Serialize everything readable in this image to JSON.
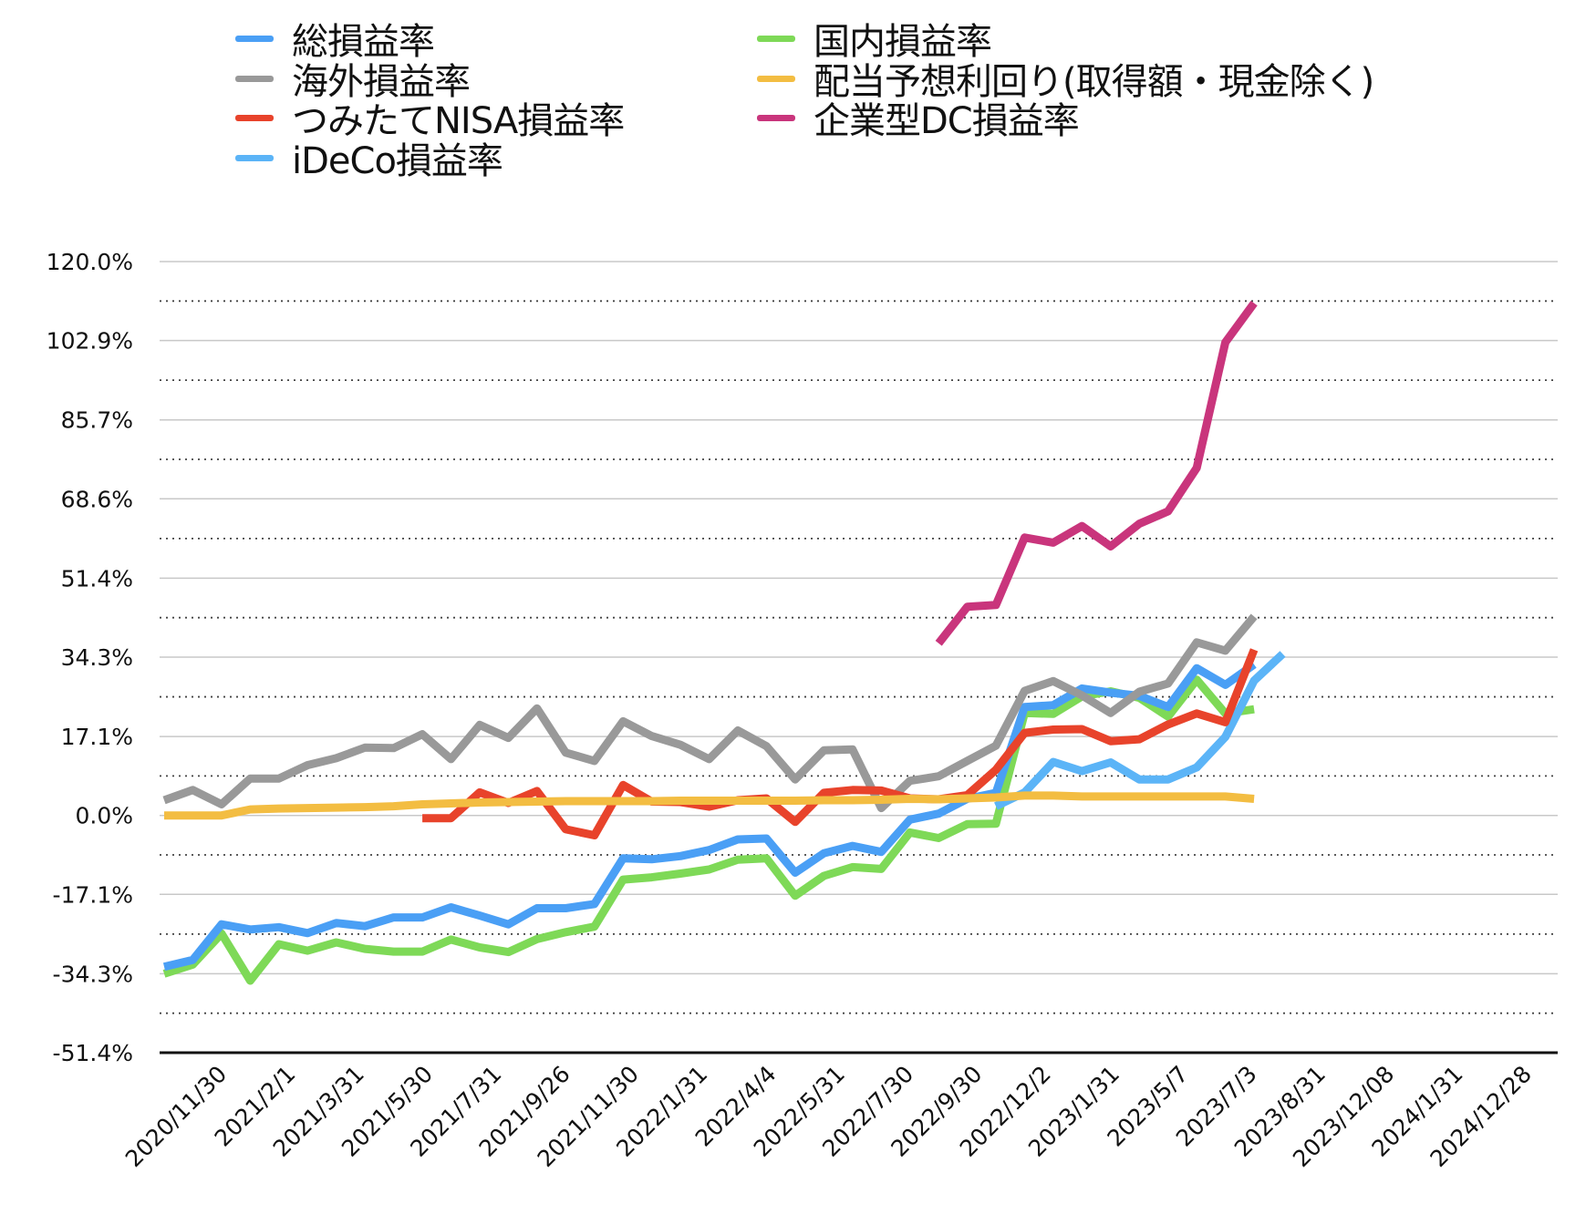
{
  "chart_data": {
    "type": "line",
    "title": "",
    "xlabel": "",
    "ylabel": "",
    "ylim": [
      -51.4,
      120.0
    ],
    "y_ticks": [
      "120.0%",
      "102.9%",
      "85.7%",
      "68.6%",
      "51.4%",
      "34.3%",
      "17.1%",
      "0.0%",
      "-17.1%",
      "-34.3%",
      "-51.4%"
    ],
    "y_tick_values": [
      120.0,
      102.9,
      85.7,
      68.6,
      51.4,
      34.3,
      17.1,
      0.0,
      -17.1,
      -34.3,
      -51.4
    ],
    "x_tick_labels": [
      "2020/11/30",
      "2021/2/1",
      "2021/3/31",
      "2021/5/30",
      "2021/7/31",
      "2021/9/26",
      "2021/11/30",
      "2022/1/31",
      "2022/4/4",
      "2022/5/31",
      "2022/7/30",
      "2022/9/30",
      "2022/12/2",
      "2023/1/31",
      "2023/5/7",
      "2023/7/3",
      "2023/8/31",
      "2023/12/08",
      "2024/1/31",
      "2024/12/28"
    ],
    "grid": "solid gridlines at labeled ticks, dotted gridlines midway",
    "legend_position": "top",
    "point_count": 44,
    "series": [
      {
        "name": "総損益率",
        "color": "#4a9ff5",
        "values": [
          -32.8,
          -31.3,
          -23.6,
          -24.7,
          -24.2,
          -25.5,
          -23.3,
          -24.0,
          -22.1,
          -22.1,
          -19.9,
          -21.7,
          -23.6,
          -20.1,
          -20.1,
          -19.2,
          -9.3,
          -9.5,
          -8.8,
          -7.5,
          -5.2,
          -5.0,
          -12.4,
          -8.2,
          -6.6,
          -7.9,
          -0.9,
          0.4,
          3.6,
          4.9,
          23.5,
          23.9,
          27.5,
          26.6,
          25.9,
          23.5,
          31.9,
          28.3,
          32.7,
          null,
          null,
          null,
          null,
          null
        ]
      },
      {
        "name": "海外損益率",
        "color": "#999999",
        "values": [
          3.3,
          5.5,
          2.4,
          8.0,
          8.0,
          10.9,
          12.4,
          14.7,
          14.6,
          17.6,
          12.2,
          19.6,
          16.8,
          23.2,
          13.6,
          11.8,
          20.4,
          17.2,
          15.3,
          12.2,
          18.4,
          15.0,
          7.8,
          14.1,
          14.3,
          1.6,
          7.5,
          8.5,
          11.8,
          15.1,
          27.0,
          29.1,
          26.0,
          22.2,
          26.8,
          28.6,
          37.5,
          35.7,
          43.1,
          null,
          null,
          null,
          null,
          null
        ]
      },
      {
        "name": "つみたてNISA損益率",
        "color": "#e8432b",
        "values": [
          null,
          null,
          null,
          null,
          null,
          null,
          null,
          null,
          null,
          -0.6,
          -0.6,
          5.0,
          2.7,
          5.3,
          -3.0,
          -4.3,
          6.6,
          3.0,
          2.9,
          1.9,
          3.3,
          3.7,
          -1.4,
          4.9,
          5.5,
          5.4,
          3.7,
          3.5,
          4.4,
          9.9,
          17.9,
          18.6,
          18.7,
          16.1,
          16.5,
          19.7,
          22.1,
          20.2,
          35.9,
          null,
          null,
          null,
          null,
          null
        ]
      },
      {
        "name": "iDeCo損益率",
        "color": "#5bb4f7",
        "values": [
          null,
          null,
          null,
          null,
          null,
          null,
          null,
          null,
          null,
          null,
          null,
          null,
          null,
          null,
          null,
          null,
          null,
          null,
          null,
          null,
          null,
          null,
          null,
          null,
          null,
          null,
          null,
          null,
          null,
          2.0,
          5.0,
          11.6,
          9.6,
          11.5,
          7.8,
          7.8,
          10.4,
          17.0,
          29.2,
          35.0,
          null,
          null,
          null,
          null
        ]
      },
      {
        "name": "国内損益率",
        "color": "#7ed957",
        "values": [
          -34.3,
          -32.3,
          -25.6,
          -35.8,
          -27.9,
          -29.3,
          -27.5,
          -28.9,
          -29.5,
          -29.5,
          -26.9,
          -28.6,
          -29.6,
          -26.8,
          -25.3,
          -24.1,
          -13.9,
          -13.4,
          -12.6,
          -11.7,
          -9.6,
          -9.3,
          -17.4,
          -13.1,
          -11.2,
          -11.6,
          -3.7,
          -4.9,
          -1.9,
          -1.8,
          22.2,
          22.0,
          25.8,
          26.9,
          25.5,
          21.4,
          29.4,
          22.1,
          23.0,
          null,
          null,
          null,
          null,
          null
        ]
      },
      {
        "name": "配当予想利回り(取得額・現金除く)",
        "color": "#f3bd42",
        "values": [
          0.0,
          0.0,
          0.0,
          1.3,
          1.5,
          1.6,
          1.7,
          1.8,
          2.0,
          2.4,
          2.6,
          2.8,
          2.9,
          3.0,
          3.1,
          3.1,
          3.1,
          3.1,
          3.2,
          3.2,
          3.2,
          3.2,
          3.2,
          3.3,
          3.3,
          3.4,
          3.6,
          3.5,
          3.7,
          3.9,
          4.3,
          4.3,
          4.1,
          4.1,
          4.1,
          4.1,
          4.1,
          4.1,
          3.6,
          null,
          null,
          null,
          null,
          null
        ]
      },
      {
        "name": "企業型DC損益率",
        "color": "#c9357c",
        "values": [
          null,
          null,
          null,
          null,
          null,
          null,
          null,
          null,
          null,
          null,
          null,
          null,
          null,
          null,
          null,
          null,
          null,
          null,
          null,
          null,
          null,
          null,
          null,
          null,
          null,
          null,
          null,
          37.3,
          45.2,
          45.6,
          60.2,
          59.1,
          62.7,
          58.3,
          63.2,
          65.9,
          75.3,
          102.5,
          111.0,
          null,
          null,
          null,
          null,
          null
        ]
      }
    ]
  }
}
